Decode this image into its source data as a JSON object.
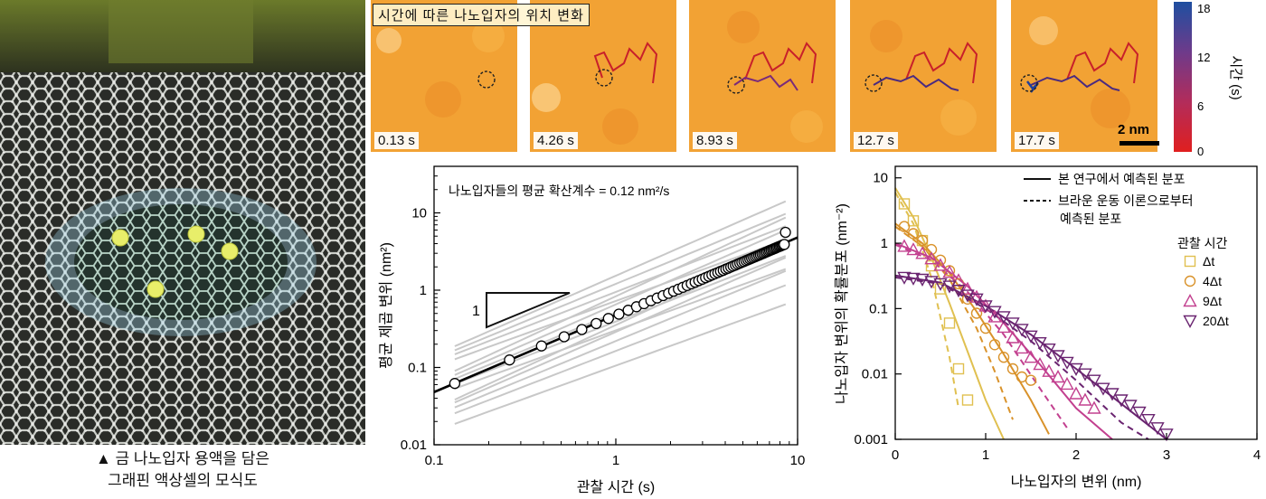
{
  "schematic": {
    "caption_line1": "▲ 금 나노입자 용액을 담은",
    "caption_line2": "그래핀 액상셀의 모식도"
  },
  "frames": {
    "title": "시간에 따른 나노입자의 위치 변화",
    "times": [
      "0.13 s",
      "4.26 s",
      "8.93 s",
      "12.7 s",
      "17.7 s"
    ],
    "scale_bar": "2 nm",
    "colorbar": {
      "label": "시간 (s)",
      "ticks": [
        "18",
        "12",
        "6",
        "0"
      ],
      "min": 0,
      "max": 18
    }
  },
  "chart_data": [
    {
      "type": "line",
      "title": "나노입자들의 평균 확산계수 = 0.12 nm²/s",
      "annotation_slope": "1",
      "xlabel": "관찰 시간 (s)",
      "ylabel": "평균 제곱 변위 (nm²)",
      "xscale": "log",
      "yscale": "log",
      "xlim": [
        0.1,
        10
      ],
      "ylim": [
        0.01,
        40
      ],
      "xticks": [
        "0.1",
        "1",
        "10"
      ],
      "yticks": [
        "0.01",
        "0.1",
        "1",
        "10"
      ],
      "series": [
        {
          "name": "평균 (circles)",
          "x": [
            0.13,
            0.26,
            0.39,
            0.52,
            0.65,
            0.78,
            0.91,
            1.04,
            1.17,
            1.3,
            1.43,
            1.56,
            1.69,
            1.82,
            1.95,
            2.08,
            2.21,
            2.34,
            2.47,
            2.6,
            2.73,
            2.86,
            2.99,
            3.12,
            3.25,
            3.38,
            3.51,
            3.64,
            3.77,
            3.9,
            4.03,
            4.16,
            4.29,
            4.42,
            4.55,
            4.68,
            4.81,
            4.94,
            5.07,
            5.2,
            5.33,
            5.46,
            5.59,
            5.72,
            5.85,
            5.98,
            6.11,
            6.24,
            6.37,
            6.5,
            6.63,
            6.76,
            6.89,
            7.02,
            7.15,
            7.28,
            7.41,
            7.54,
            7.67,
            7.8,
            7.93,
            8.06,
            8.19,
            8.32,
            8.45,
            8.58
          ],
          "y": [
            0.062,
            0.125,
            0.19,
            0.25,
            0.31,
            0.37,
            0.43,
            0.49,
            0.55,
            0.61,
            0.67,
            0.73,
            0.79,
            0.85,
            0.91,
            0.97,
            1.03,
            1.09,
            1.15,
            1.21,
            1.27,
            1.33,
            1.39,
            1.45,
            1.51,
            1.57,
            1.63,
            1.69,
            1.75,
            1.81,
            1.87,
            1.93,
            1.99,
            2.05,
            2.11,
            2.17,
            2.23,
            2.29,
            2.35,
            2.41,
            2.47,
            2.53,
            2.59,
            2.65,
            2.71,
            2.77,
            2.83,
            2.89,
            2.95,
            3.01,
            3.07,
            3.13,
            3.19,
            3.25,
            3.31,
            3.37,
            3.43,
            3.49,
            3.55,
            3.61,
            3.67,
            3.73,
            3.79,
            3.85,
            3.91,
            5.6
          ]
        },
        {
          "name": "선형 피팅",
          "x": [
            0.1,
            10
          ],
          "y": [
            0.048,
            4.8
          ]
        }
      ]
    },
    {
      "type": "line",
      "xlabel": "나노입자의 변위 (nm)",
      "ylabel": "나노입자 변위의 확률분포 (nm⁻²)",
      "yscale": "log",
      "xlim": [
        0,
        4
      ],
      "ylim": [
        0.001,
        15
      ],
      "xticks": [
        "0",
        "1",
        "2",
        "3",
        "4"
      ],
      "yticks": [
        "0.001",
        "0.01",
        "0.1",
        "1",
        "10"
      ],
      "legend_lines": [
        "본 연구에서 예측된 분포",
        "브라운 운동 이론으로부터",
        "예측된 분포"
      ],
      "legend_title": "관찰 시간",
      "series": [
        {
          "name": "Δt",
          "color": "#e0c050",
          "marker": "square",
          "x": [
            0.1,
            0.2,
            0.3,
            0.4,
            0.5,
            0.6,
            0.7,
            0.8
          ],
          "y": [
            4.0,
            2.2,
            1.1,
            0.45,
            0.2,
            0.06,
            0.012,
            0.004
          ]
        },
        {
          "name": "4Δt",
          "color": "#d9922a",
          "marker": "circle",
          "x": [
            0.1,
            0.2,
            0.3,
            0.4,
            0.5,
            0.6,
            0.7,
            0.8,
            0.9,
            1.0,
            1.1,
            1.2,
            1.3,
            1.4,
            1.5
          ],
          "y": [
            1.8,
            1.4,
            1.1,
            0.8,
            0.55,
            0.38,
            0.24,
            0.14,
            0.085,
            0.05,
            0.028,
            0.018,
            0.012,
            0.009,
            0.008
          ]
        },
        {
          "name": "9Δt",
          "color": "#c2408f",
          "marker": "triangle-up",
          "x": [
            0.1,
            0.2,
            0.3,
            0.4,
            0.5,
            0.6,
            0.7,
            0.8,
            0.9,
            1.0,
            1.1,
            1.2,
            1.3,
            1.4,
            1.5,
            1.6,
            1.7,
            1.8,
            1.9,
            2.0,
            2.1,
            2.2
          ],
          "y": [
            0.9,
            0.8,
            0.7,
            0.58,
            0.46,
            0.36,
            0.27,
            0.2,
            0.15,
            0.11,
            0.075,
            0.052,
            0.036,
            0.025,
            0.018,
            0.014,
            0.011,
            0.009,
            0.007,
            0.005,
            0.004,
            0.003
          ]
        },
        {
          "name": "20Δt",
          "color": "#6a2470",
          "marker": "triangle-down",
          "x": [
            0.1,
            0.2,
            0.3,
            0.4,
            0.5,
            0.6,
            0.7,
            0.8,
            0.9,
            1.0,
            1.1,
            1.2,
            1.3,
            1.4,
            1.5,
            1.6,
            1.7,
            1.8,
            1.9,
            2.0,
            2.1,
            2.2,
            2.3,
            2.4,
            2.5,
            2.6,
            2.7,
            2.8,
            2.9,
            3.0
          ],
          "y": [
            0.3,
            0.29,
            0.28,
            0.26,
            0.24,
            0.22,
            0.19,
            0.16,
            0.14,
            0.11,
            0.09,
            0.075,
            0.06,
            0.048,
            0.038,
            0.03,
            0.024,
            0.019,
            0.015,
            0.012,
            0.01,
            0.008,
            0.006,
            0.005,
            0.004,
            0.0033,
            0.0026,
            0.002,
            0.0015,
            0.0012
          ]
        }
      ],
      "fits": [
        {
          "series": "Δt",
          "style": "solid",
          "color": "#e0c050",
          "x": [
            0.0,
            0.2,
            0.4,
            0.6,
            0.8,
            1.0,
            1.2
          ],
          "y": [
            7.0,
            2.5,
            0.6,
            0.12,
            0.022,
            0.004,
            0.0009
          ]
        },
        {
          "series": "Δt",
          "style": "dashed",
          "color": "#e0c050",
          "x": [
            0.0,
            0.2,
            0.4,
            0.6,
            0.7
          ],
          "y": [
            6.0,
            2.0,
            0.3,
            0.018,
            0.003
          ]
        },
        {
          "series": "4Δt",
          "style": "solid",
          "color": "#d9922a",
          "x": [
            0.0,
            0.3,
            0.6,
            0.9,
            1.2,
            1.5,
            1.7
          ],
          "y": [
            2.0,
            1.0,
            0.35,
            0.09,
            0.02,
            0.004,
            0.0012
          ]
        },
        {
          "series": "4Δt",
          "style": "dashed",
          "color": "#d9922a",
          "x": [
            0.0,
            0.3,
            0.6,
            0.9,
            1.1,
            1.3
          ],
          "y": [
            1.8,
            0.9,
            0.28,
            0.05,
            0.011,
            0.002
          ]
        },
        {
          "series": "9Δt",
          "style": "solid",
          "color": "#c2408f",
          "x": [
            0.0,
            0.4,
            0.8,
            1.2,
            1.6,
            2.0,
            2.4
          ],
          "y": [
            1.0,
            0.6,
            0.22,
            0.06,
            0.014,
            0.003,
            0.0008
          ]
        },
        {
          "series": "9Δt",
          "style": "dashed",
          "color": "#c2408f",
          "x": [
            0.0,
            0.4,
            0.8,
            1.2,
            1.6,
            1.9
          ],
          "y": [
            0.95,
            0.55,
            0.18,
            0.04,
            0.006,
            0.0015
          ]
        },
        {
          "series": "20Δt",
          "style": "solid",
          "color": "#6a2470",
          "x": [
            0.0,
            0.5,
            1.0,
            1.5,
            2.0,
            2.5,
            3.0
          ],
          "y": [
            0.32,
            0.25,
            0.11,
            0.04,
            0.012,
            0.0035,
            0.0009
          ]
        },
        {
          "series": "20Δt",
          "style": "dashed",
          "color": "#6a2470",
          "x": [
            0.0,
            0.5,
            1.0,
            1.5,
            2.0,
            2.5,
            2.8
          ],
          "y": [
            0.3,
            0.24,
            0.1,
            0.032,
            0.008,
            0.0018,
            0.0009
          ]
        }
      ]
    }
  ]
}
